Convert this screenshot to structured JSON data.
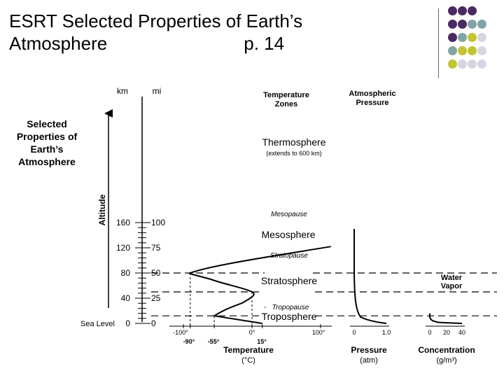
{
  "slide": {
    "title_line1": "ESRT Selected Properties of Earth’s",
    "title_line2": "Atmosphere",
    "page_ref": "p. 14"
  },
  "decor": {
    "dot_colors": [
      "#4b2a63",
      "#82a4a4",
      "#c3c434",
      "#d5d5e3"
    ]
  },
  "diagram": {
    "side_title": [
      "Selected",
      "Properties of",
      "Earth’s",
      "Atmosphere"
    ],
    "altitude_label": "Altitude",
    "km_header": "km",
    "mi_header": "mi",
    "km_ticks": [
      {
        "label": "160",
        "km": 160
      },
      {
        "label": "120",
        "km": 120
      },
      {
        "label": "80",
        "km": 80
      },
      {
        "label": "40",
        "km": 40
      },
      {
        "label": "0",
        "km": 0
      }
    ],
    "mi_ticks": [
      {
        "label": "100",
        "km": 160
      },
      {
        "label": "75",
        "km": 120
      },
      {
        "label": "50",
        "km": 80
      },
      {
        "label": "25",
        "km": 40
      },
      {
        "label": "0",
        "km": 0
      }
    ],
    "sea_level": "Sea Level",
    "temp_zones_header": [
      "Temperature",
      "Zones"
    ],
    "pressure_header": [
      "Atmospheric",
      "Pressure"
    ],
    "zones": {
      "thermosphere": "Thermosphere",
      "thermosphere_note": "(extends to 600 km)",
      "mesosphere": "Mesosphere",
      "stratosphere": "Stratosphere",
      "troposphere": "Troposphere"
    },
    "pauses": {
      "mesopause": "Mesopause",
      "stratopause": "Stratopause",
      "tropopause": "Tropopause"
    },
    "temperature_axis": {
      "ticks_top": [
        "-100°",
        "0°",
        "100°"
      ],
      "ticks_bottom": [
        "-90°",
        "-55°",
        "15°"
      ],
      "label": "Temperature",
      "unit": "(°C)"
    },
    "pressure_axis": {
      "ticks": [
        "0",
        "1.0"
      ],
      "label": "Pressure",
      "unit": "(atm)"
    },
    "water_vapor": {
      "label": [
        "Water",
        "Vapor"
      ],
      "ticks": [
        "0",
        "20",
        "40"
      ],
      "axis_label": "Concentration",
      "unit": "(g/m³)"
    }
  },
  "chart_data": {
    "type": "line",
    "series": [
      {
        "name": "Temperature",
        "x_unit": "°C",
        "points": [
          [
            15,
            0
          ],
          [
            -55,
            12
          ],
          [
            -15,
            30
          ],
          [
            0,
            50
          ],
          [
            -35,
            65
          ],
          [
            -90,
            80
          ],
          [
            -20,
            100
          ],
          [
            100,
            120
          ]
        ]
      },
      {
        "name": "Pressure",
        "x_unit": "atm",
        "points": [
          [
            1.0,
            0
          ],
          [
            0.7,
            2
          ],
          [
            0.45,
            5
          ],
          [
            0.25,
            10
          ],
          [
            0.12,
            15
          ],
          [
            0.06,
            25
          ],
          [
            0.02,
            45
          ],
          [
            0,
            80
          ],
          [
            0,
            150
          ]
        ]
      },
      {
        "name": "Water Vapor",
        "x_unit": "g/m³",
        "points": [
          [
            40,
            0
          ],
          [
            20,
            2
          ],
          [
            8,
            4
          ],
          [
            3,
            6
          ],
          [
            1,
            10
          ],
          [
            0,
            15
          ]
        ]
      }
    ],
    "boundaries_km": [
      {
        "name": "Tropopause",
        "km": 12
      },
      {
        "name": "Stratopause",
        "km": 50
      },
      {
        "name": "Mesopause",
        "km": 80
      }
    ],
    "ylabel": "Altitude",
    "ylim": [
      0,
      160
    ]
  }
}
